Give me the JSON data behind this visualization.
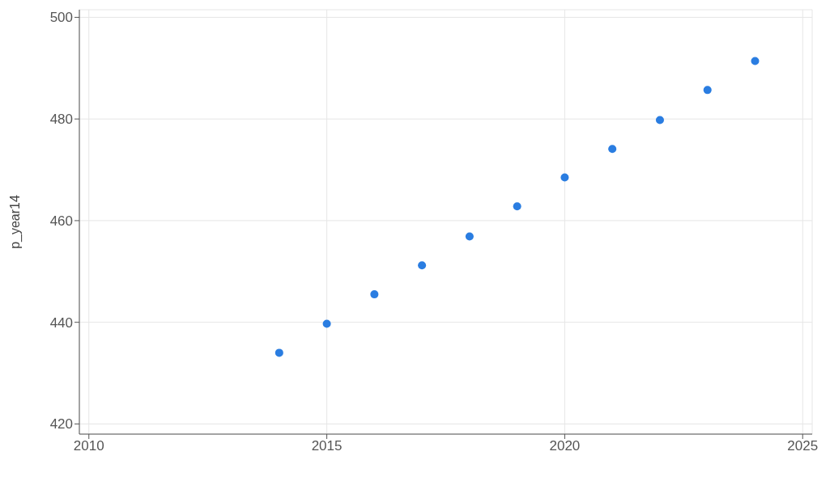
{
  "chart_data": {
    "type": "scatter",
    "ylabel": "p_year14",
    "x": [
      2014,
      2015,
      2016,
      2017,
      2018,
      2019,
      2020,
      2021,
      2022,
      2023,
      2024
    ],
    "series": [
      {
        "color": "#2a7de1",
        "values": [
          434.0,
          439.7,
          445.5,
          451.2,
          456.9,
          462.8,
          468.5,
          474.1,
          479.8,
          485.7,
          491.4
        ]
      }
    ],
    "xlim": [
      2009.8,
      2025.2
    ],
    "xticks": [
      2010,
      2015,
      2020,
      2025
    ],
    "ylim": [
      418,
      501.5
    ],
    "yticks": [
      420,
      440,
      460,
      480,
      500
    ],
    "grid": true,
    "marker": "circle",
    "legend": false
  }
}
